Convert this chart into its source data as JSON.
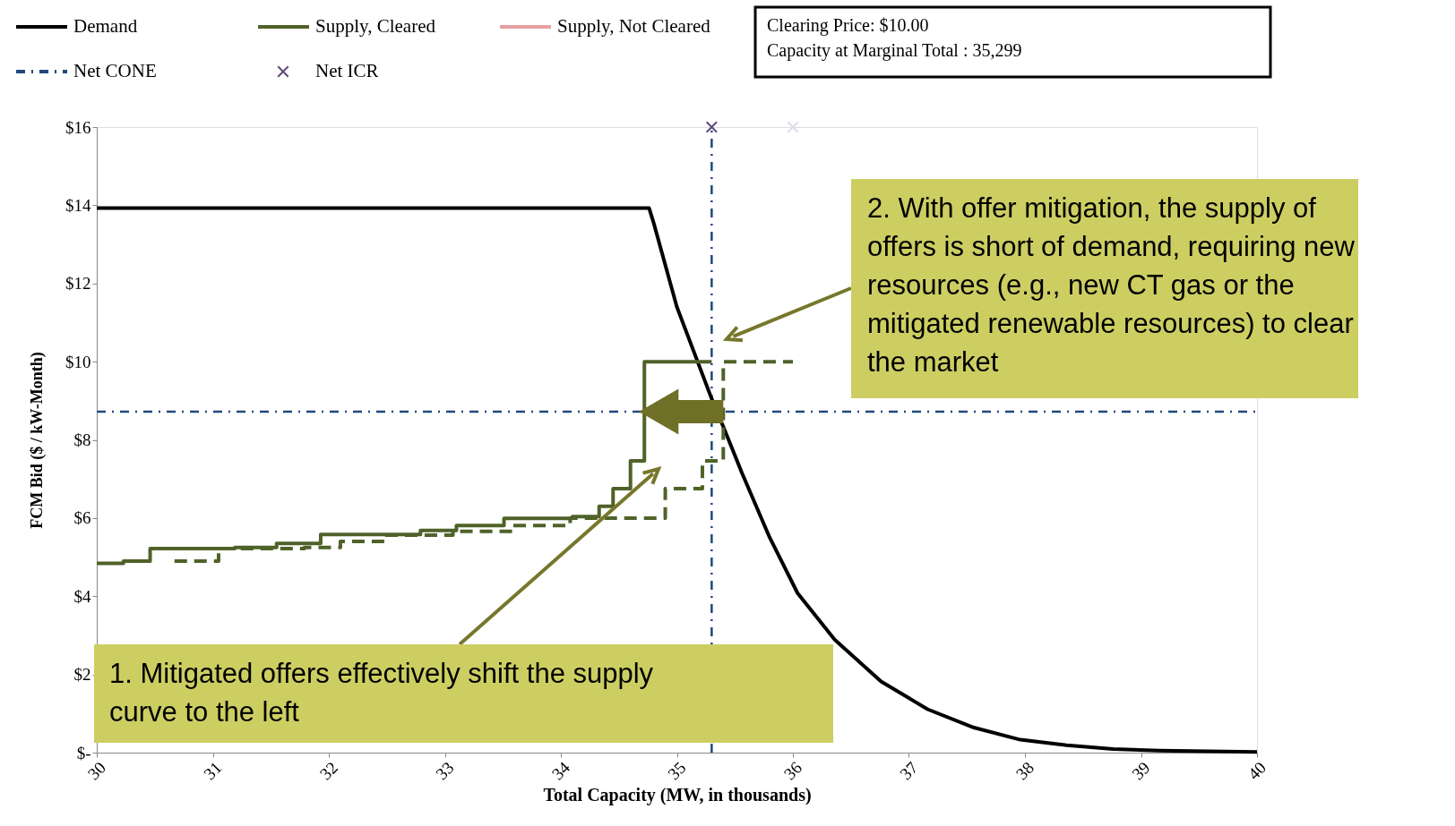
{
  "chart_data": {
    "type": "line",
    "xlabel": "Total Capacity (MW, in thousands)",
    "ylabel": "FCM Bid ($ / kW-Month)",
    "xlim": [
      30,
      40
    ],
    "ylim": [
      0,
      16
    ],
    "xticks": [
      30,
      31,
      32,
      33,
      34,
      35,
      36,
      37,
      38,
      39,
      40
    ],
    "yticks": [
      {
        "value": 0,
        "label": "$-"
      },
      {
        "value": 2,
        "label": "$2"
      },
      {
        "value": 4,
        "label": "$4"
      },
      {
        "value": 6,
        "label": "$6"
      },
      {
        "value": 8,
        "label": "$8"
      },
      {
        "value": 10,
        "label": "$10"
      },
      {
        "value": 12,
        "label": "$12"
      },
      {
        "value": 14,
        "label": "$14"
      },
      {
        "value": 16,
        "label": "$16"
      }
    ],
    "grid": false,
    "legend": "top left",
    "series": [
      {
        "name": "Demand",
        "color": "#000000",
        "line_style": "solid",
        "x": [
          30,
          34.76,
          34.8,
          35.0,
          35.3,
          35.4,
          35.56,
          35.8,
          36.04,
          36.36,
          36.76,
          37.16,
          37.56,
          37.96,
          38.36,
          38.76,
          39.16,
          40.0
        ],
        "values": [
          13.93,
          13.93,
          13.55,
          11.4,
          9.05,
          8.34,
          7.16,
          5.5,
          4.08,
          2.89,
          1.82,
          1.11,
          0.64,
          0.33,
          0.19,
          0.09,
          0.05,
          0.02
        ]
      },
      {
        "name": "Supply, Cleared",
        "type": "step",
        "color": "#4f6228",
        "line_style": "solid",
        "x": [
          30,
          30.23,
          30.46,
          31.19,
          31.55,
          31.93,
          32.79,
          33.1,
          33.51,
          34.1,
          34.33,
          34.45,
          34.6,
          34.72,
          35.3
        ],
        "values": [
          4.84,
          4.9,
          5.22,
          5.25,
          5.35,
          5.58,
          5.68,
          5.81,
          5.99,
          6.04,
          6.3,
          6.75,
          7.46,
          10.0,
          10.0
        ]
      },
      {
        "name": "Supply, Not Cleared",
        "type": "step",
        "color": "#e6a0a0",
        "line_style": "solid"
      },
      {
        "type": "step",
        "color": "#4f6228",
        "line_style": "dashed",
        "x": [
          30.67,
          31.05,
          31.79,
          32.1,
          32.48,
          33.07,
          33.58,
          34.08,
          34.9,
          35.22,
          35.4,
          36.0
        ],
        "values": [
          4.9,
          5.22,
          5.25,
          5.4,
          5.56,
          5.66,
          5.81,
          6.0,
          6.75,
          7.46,
          10.0,
          10.0
        ]
      },
      {
        "name": "Net ICR",
        "type": "scatter",
        "color": "#604a7b",
        "marker": "cross",
        "x": [
          35.3
        ],
        "values": [
          16
        ]
      },
      {
        "type": "scatter",
        "color": "#dcdcec",
        "marker": "cross",
        "x": [
          36.0
        ],
        "values": [
          16
        ]
      }
    ],
    "ref_lines": [
      {
        "axis": "y",
        "value": 8.72,
        "label": "Net CONE",
        "color": "#1f497d",
        "line_style": "dashed"
      },
      {
        "axis": "x",
        "value": 35.3,
        "color": "#1f497d",
        "line_style": "dashed"
      }
    ],
    "annotations": [
      "Clearing  Price: $10.00",
      "Capacity at Marginal Total : 35,299",
      "1. Mitigated offers effectively shift the supply curve to the left",
      "2. With offer mitigation, the supply of offers is short of demand, requiring new resources (e.g., new CT gas or the mitigated renewable resources) to clear the market"
    ]
  }
}
